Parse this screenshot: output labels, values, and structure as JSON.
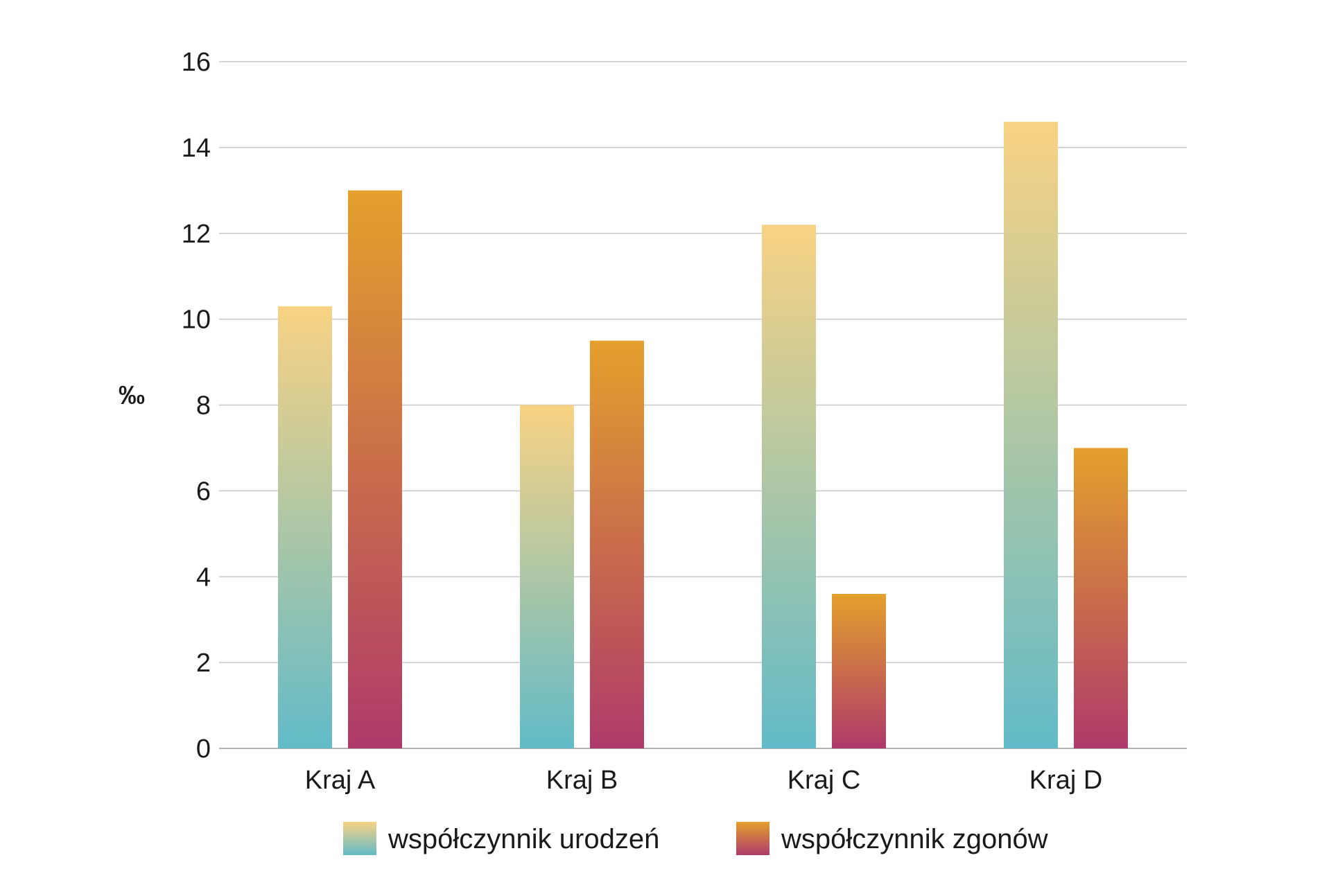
{
  "chart_data": {
    "type": "bar",
    "categories": [
      "Kraj A",
      "Kraj B",
      "Kraj C",
      "Kraj D"
    ],
    "series": [
      {
        "name": "współczynnik urodzeń",
        "values": [
          10.3,
          8.0,
          12.2,
          14.6
        ]
      },
      {
        "name": "współczynnik zgonów",
        "values": [
          13.0,
          9.5,
          3.6,
          7.0
        ]
      }
    ],
    "yticks": [
      "0",
      "2",
      "4",
      "6",
      "8",
      "10",
      "12",
      "14",
      "16"
    ],
    "ylabel": "‰",
    "xlabel": "",
    "ylim": [
      0,
      16
    ],
    "grid": true,
    "legend_position": "bottom",
    "colors": {
      "birth_top": "#f8d283",
      "birth_bottom": "#62bbc8",
      "death_top": "#e4a02c",
      "death_bottom": "#ae3a6a",
      "grid": "#c8c8c8",
      "axis": "#b0b0b0"
    }
  }
}
